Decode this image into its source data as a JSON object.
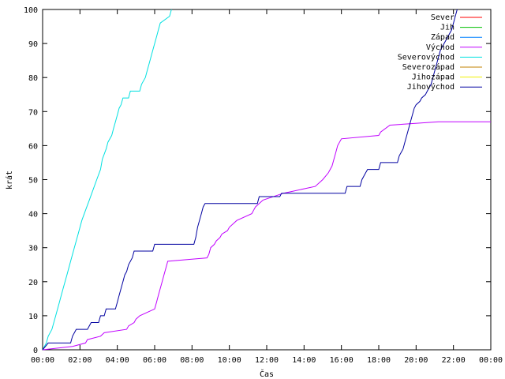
{
  "chart_data": {
    "type": "line",
    "title": "",
    "xlabel": "Čas",
    "ylabel": "krát",
    "xlim": [
      0,
      24
    ],
    "ylim": [
      0,
      100
    ],
    "grid": false,
    "legend_position": "top-right",
    "x_ticks": [
      {
        "value": 0,
        "label": "00:00"
      },
      {
        "value": 2,
        "label": "02:00"
      },
      {
        "value": 4,
        "label": "04:00"
      },
      {
        "value": 6,
        "label": "06:00"
      },
      {
        "value": 8,
        "label": "08:00"
      },
      {
        "value": 10,
        "label": "10:00"
      },
      {
        "value": 12,
        "label": "12:00"
      },
      {
        "value": 14,
        "label": "14:00"
      },
      {
        "value": 16,
        "label": "16:00"
      },
      {
        "value": 18,
        "label": "18:00"
      },
      {
        "value": 20,
        "label": "20:00"
      },
      {
        "value": 22,
        "label": "22:00"
      },
      {
        "value": 24,
        "label": "00:00"
      }
    ],
    "y_ticks": [
      0,
      10,
      20,
      30,
      40,
      50,
      60,
      70,
      80,
      90,
      100
    ],
    "series": [
      {
        "name": "Sever",
        "color": "#ff0000",
        "points": []
      },
      {
        "name": "Jih",
        "color": "#00c000",
        "points": []
      },
      {
        "name": "Západ",
        "color": "#0080ff",
        "points": []
      },
      {
        "name": "Východ",
        "color": "#c000ff",
        "points": [
          [
            0,
            0
          ],
          [
            1.6,
            1
          ],
          [
            2.3,
            2
          ],
          [
            2.4,
            3
          ],
          [
            3.1,
            4
          ],
          [
            3.3,
            5
          ],
          [
            4.5,
            6
          ],
          [
            4.6,
            7
          ],
          [
            4.9,
            8
          ],
          [
            5,
            9
          ],
          [
            5.2,
            10
          ],
          [
            6,
            12
          ],
          [
            6.1,
            14
          ],
          [
            6.2,
            16
          ],
          [
            6.3,
            18
          ],
          [
            6.4,
            20
          ],
          [
            6.5,
            22
          ],
          [
            6.6,
            24
          ],
          [
            6.7,
            26
          ],
          [
            8.8,
            27
          ],
          [
            8.9,
            28
          ],
          [
            9,
            30
          ],
          [
            9.2,
            31
          ],
          [
            9.3,
            32
          ],
          [
            9.5,
            33
          ],
          [
            9.6,
            34
          ],
          [
            9.9,
            35
          ],
          [
            10,
            36
          ],
          [
            10.2,
            37
          ],
          [
            10.4,
            38
          ],
          [
            11.2,
            40
          ],
          [
            11.3,
            41
          ],
          [
            11.4,
            42
          ],
          [
            11.6,
            43
          ],
          [
            11.8,
            44
          ],
          [
            12.9,
            46
          ],
          [
            14.6,
            48
          ],
          [
            15,
            50
          ],
          [
            15.3,
            52
          ],
          [
            15.5,
            54
          ],
          [
            15.6,
            56
          ],
          [
            15.7,
            58
          ],
          [
            15.8,
            60
          ],
          [
            16,
            62
          ],
          [
            18,
            63
          ],
          [
            18.1,
            64
          ],
          [
            18.6,
            66
          ],
          [
            21.2,
            67
          ],
          [
            24,
            67
          ]
        ]
      },
      {
        "name": "Severovýchod",
        "color": "#00e0e0",
        "points": [
          [
            0,
            0
          ],
          [
            0.2,
            2
          ],
          [
            0.3,
            4
          ],
          [
            0.5,
            6
          ],
          [
            0.7,
            10
          ],
          [
            0.9,
            14
          ],
          [
            1.1,
            18
          ],
          [
            1.3,
            22
          ],
          [
            1.5,
            26
          ],
          [
            1.7,
            30
          ],
          [
            1.9,
            34
          ],
          [
            2.1,
            38
          ],
          [
            2.3,
            41
          ],
          [
            2.5,
            44
          ],
          [
            2.7,
            47
          ],
          [
            2.9,
            50
          ],
          [
            3.1,
            53
          ],
          [
            3.2,
            56
          ],
          [
            3.4,
            59
          ],
          [
            3.5,
            61
          ],
          [
            3.7,
            63
          ],
          [
            3.8,
            65
          ],
          [
            3.9,
            67
          ],
          [
            4,
            69
          ],
          [
            4.1,
            71
          ],
          [
            4.2,
            72
          ],
          [
            4.3,
            74
          ],
          [
            4.6,
            74
          ],
          [
            4.7,
            76
          ],
          [
            5.2,
            76
          ],
          [
            5.3,
            78
          ],
          [
            5.5,
            80
          ],
          [
            5.6,
            82
          ],
          [
            5.7,
            84
          ],
          [
            5.8,
            86
          ],
          [
            5.9,
            88
          ],
          [
            6,
            90
          ],
          [
            6.1,
            92
          ],
          [
            6.2,
            94
          ],
          [
            6.3,
            96
          ],
          [
            6.8,
            98
          ],
          [
            6.9,
            100
          ]
        ]
      },
      {
        "name": "Severozápad",
        "color": "#c08000",
        "points": []
      },
      {
        "name": "Jihozápad",
        "color": "#f0f000",
        "points": []
      },
      {
        "name": "Jihovýchod",
        "color": "#0000a0",
        "points": [
          [
            0,
            0
          ],
          [
            0.3,
            2
          ],
          [
            1.5,
            2
          ],
          [
            1.6,
            4
          ],
          [
            1.8,
            6
          ],
          [
            2.4,
            6
          ],
          [
            2.6,
            8
          ],
          [
            3,
            8
          ],
          [
            3.1,
            10
          ],
          [
            3.3,
            10
          ],
          [
            3.4,
            12
          ],
          [
            3.9,
            12
          ],
          [
            4,
            14
          ],
          [
            4.1,
            16
          ],
          [
            4.2,
            18
          ],
          [
            4.3,
            20
          ],
          [
            4.4,
            22
          ],
          [
            4.5,
            23
          ],
          [
            4.6,
            25
          ],
          [
            4.8,
            27
          ],
          [
            4.9,
            29
          ],
          [
            5.9,
            29
          ],
          [
            6,
            31
          ],
          [
            8.1,
            31
          ],
          [
            8.2,
            33
          ],
          [
            8.3,
            36
          ],
          [
            8.4,
            38
          ],
          [
            8.5,
            40
          ],
          [
            8.6,
            42
          ],
          [
            8.7,
            43
          ],
          [
            11.5,
            43
          ],
          [
            11.6,
            45
          ],
          [
            12.7,
            45
          ],
          [
            12.8,
            46
          ],
          [
            16.2,
            46
          ],
          [
            16.3,
            48
          ],
          [
            17,
            48
          ],
          [
            17.1,
            50
          ],
          [
            17.3,
            52
          ],
          [
            17.4,
            53
          ],
          [
            18,
            53
          ],
          [
            18.1,
            55
          ],
          [
            19,
            55
          ],
          [
            19.1,
            57
          ],
          [
            19.3,
            59
          ],
          [
            19.4,
            61
          ],
          [
            19.5,
            63
          ],
          [
            19.6,
            65
          ],
          [
            19.7,
            67
          ],
          [
            19.8,
            69
          ],
          [
            19.9,
            71
          ],
          [
            20,
            72
          ],
          [
            20.2,
            73
          ],
          [
            20.3,
            74
          ],
          [
            20.5,
            75
          ],
          [
            20.6,
            76
          ],
          [
            20.7,
            77
          ],
          [
            20.8,
            78
          ],
          [
            20.9,
            80
          ],
          [
            21,
            82
          ],
          [
            21.1,
            84
          ],
          [
            21.2,
            86
          ],
          [
            21.3,
            88
          ],
          [
            21.5,
            90
          ],
          [
            21.7,
            92
          ],
          [
            21.9,
            94
          ],
          [
            22,
            96
          ],
          [
            22.1,
            98
          ],
          [
            22.2,
            100
          ]
        ]
      }
    ]
  }
}
